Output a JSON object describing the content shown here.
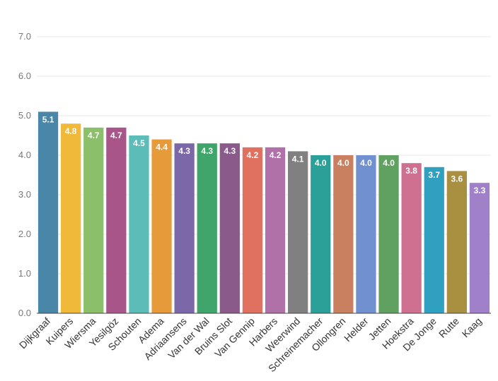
{
  "chart_data": {
    "type": "bar",
    "title": "",
    "xlabel": "",
    "ylabel": "",
    "ylim": [
      0,
      7.0
    ],
    "yticks": [
      "0.0",
      "1.0",
      "2.0",
      "3.0",
      "4.0",
      "5.0",
      "6.0",
      "7.0"
    ],
    "grid": true,
    "legend": "none",
    "categories": [
      "Dijkgraaf",
      "Kuipers",
      "Wiersma",
      "Yesilgöz",
      "Schouten",
      "Adema",
      "Adriaansens",
      "Van der Wal",
      "Bruins Slot",
      "Van Gennip",
      "Harbers",
      "Weerwind",
      "Schreinemacher",
      "Ollongren",
      "Helder",
      "Jetten",
      "Hoekstra",
      "De Jonge",
      "Rutte",
      "Kaag"
    ],
    "values": [
      5.1,
      4.8,
      4.7,
      4.7,
      4.5,
      4.4,
      4.3,
      4.3,
      4.3,
      4.2,
      4.2,
      4.1,
      4.0,
      4.0,
      4.0,
      4.0,
      3.8,
      3.7,
      3.6,
      3.3
    ],
    "value_labels": [
      "5.1",
      "4.8",
      "4.7",
      "4.7",
      "4.5",
      "4.4",
      "4.3",
      "4.3",
      "4.3",
      "4.2",
      "4.2",
      "4.1",
      "4.0",
      "4.0",
      "4.0",
      "4.0",
      "3.8",
      "3.7",
      "3.6",
      "3.3"
    ],
    "colors": [
      "#4a86a8",
      "#f0b93a",
      "#8cbf6a",
      "#a8568a",
      "#5bbcb8",
      "#e69a3a",
      "#7b68a8",
      "#3fa56a",
      "#8a5a8a",
      "#e07060",
      "#b070a8",
      "#808080",
      "#2aa098",
      "#c88060",
      "#7090d0",
      "#60a060",
      "#d07090",
      "#30a0c0",
      "#a89040",
      "#a080c8"
    ]
  }
}
